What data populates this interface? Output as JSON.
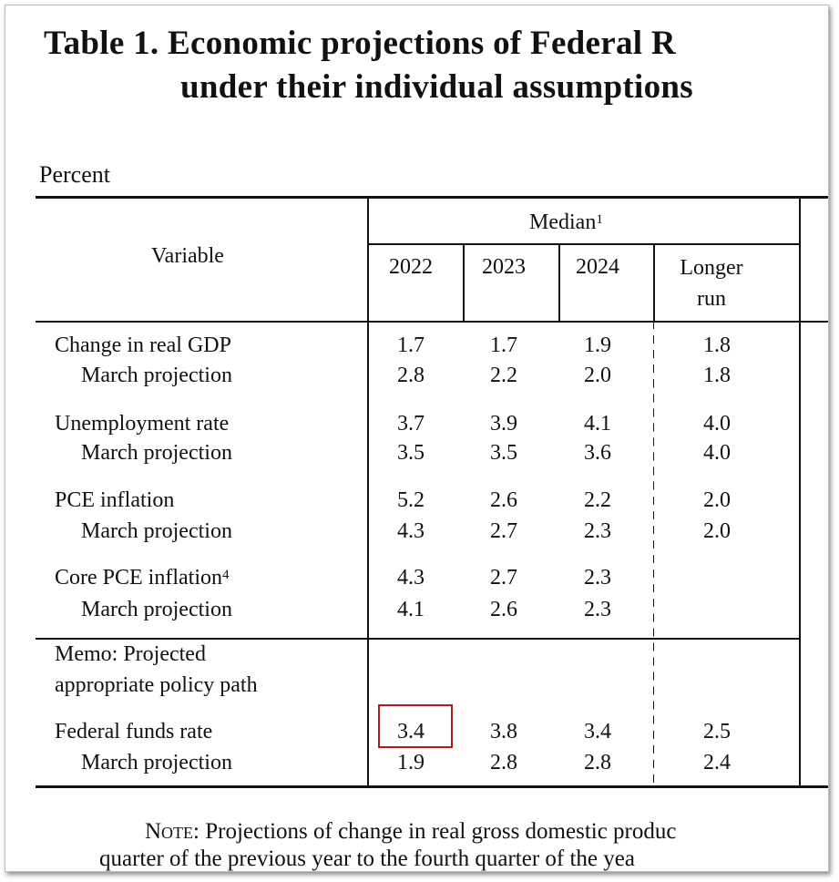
{
  "title": {
    "line1": "Table 1. Economic projections of Federal R",
    "line2": "under their individual assumptions"
  },
  "unit_label": "Percent",
  "header": {
    "variable": "Variable",
    "group": "Median",
    "group_footnote": "1",
    "columns": [
      "2022",
      "2023",
      "2024"
    ],
    "longer_run": [
      "Longer",
      "run"
    ]
  },
  "rows": [
    {
      "label": "Change in real GDP",
      "indent": false,
      "values": [
        "1.7",
        "1.7",
        "1.9",
        "1.8"
      ]
    },
    {
      "label": "March projection",
      "indent": true,
      "values": [
        "2.8",
        "2.2",
        "2.0",
        "1.8"
      ]
    },
    {
      "label": "Unemployment rate",
      "indent": false,
      "values": [
        "3.7",
        "3.9",
        "4.1",
        "4.0"
      ]
    },
    {
      "label": "March projection",
      "indent": true,
      "values": [
        "3.5",
        "3.5",
        "3.6",
        "4.0"
      ]
    },
    {
      "label": "PCE inflation",
      "indent": false,
      "values": [
        "5.2",
        "2.6",
        "2.2",
        "2.0"
      ]
    },
    {
      "label": "March projection",
      "indent": true,
      "values": [
        "4.3",
        "2.7",
        "2.3",
        "2.0"
      ]
    },
    {
      "label": "Core PCE inflation",
      "footnote": "4",
      "indent": false,
      "values": [
        "4.3",
        "2.7",
        "2.3",
        ""
      ]
    },
    {
      "label": "March projection",
      "indent": true,
      "values": [
        "4.1",
        "2.6",
        "2.3",
        ""
      ]
    }
  ],
  "memo": {
    "line1": "Memo: Projected",
    "line2": "appropriate policy path"
  },
  "memo_rows": [
    {
      "label": "Federal funds rate",
      "indent": false,
      "values": [
        "3.4",
        "3.8",
        "3.4",
        "2.5"
      ]
    },
    {
      "label": "March projection",
      "indent": true,
      "values": [
        "1.9",
        "2.8",
        "2.8",
        "2.4"
      ]
    }
  ],
  "highlight": {
    "color": "#b01c1c",
    "target": "Federal funds rate 2022"
  },
  "note": {
    "lead": "Note:",
    "line1": " Projections of change in real gross domestic produc",
    "line2": "quarter of the previous year to the fourth quarter of the yea"
  }
}
